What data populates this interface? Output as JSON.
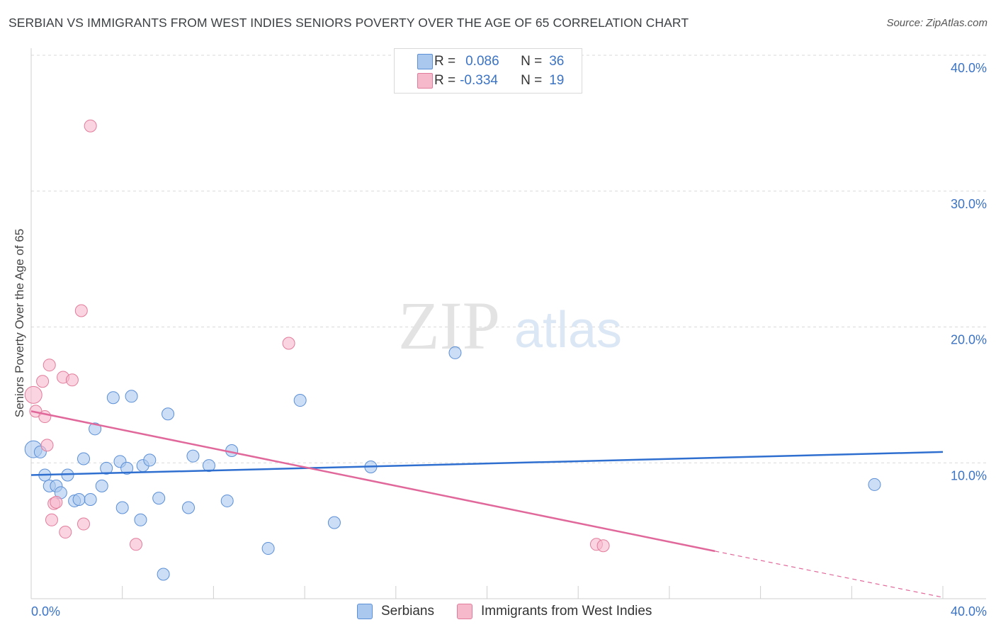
{
  "header": {
    "title": "SERBIAN VS IMMIGRANTS FROM WEST INDIES SENIORS POVERTY OVER THE AGE OF 65 CORRELATION CHART",
    "source": "Source: ZipAtlas.com"
  },
  "legend": {
    "r_label": "R =",
    "n_label": "N =",
    "rows": [
      {
        "r_value": "0.086",
        "n_value": "36",
        "color": "#aac8ee"
      },
      {
        "r_value": "-0.334",
        "n_value": "19",
        "color": "#f6b8cb"
      }
    ]
  },
  "watermark": {
    "zip": "ZIP",
    "atlas": "atlas"
  },
  "colors": {
    "serbians_fill": "#aac8ee",
    "serbians_stroke": "#5b8fd6",
    "serbians_line": "#2f6fcf",
    "westindies_fill": "#f6b8cb",
    "westindies_stroke": "#e27c9c",
    "westindies_line": "#e0689a",
    "tick_label": "#3b73c5",
    "grid": "#d9d9d9"
  },
  "chart_data": {
    "type": "scatter",
    "title": "SERBIAN VS IMMIGRANTS FROM WEST INDIES SENIORS POVERTY OVER THE AGE OF 65 CORRELATION CHART",
    "xlabel": "",
    "ylabel": "Seniors Poverty Over the Age of 65",
    "xlim": [
      0,
      40
    ],
    "ylim": [
      0,
      40
    ],
    "x_tick_labels": [
      "0.0%",
      "40.0%"
    ],
    "y_ticks": [
      10,
      20,
      30,
      40
    ],
    "y_tick_labels": [
      "10.0%",
      "20.0%",
      "30.0%",
      "40.0%"
    ],
    "grid": true,
    "legend_position": "top-center",
    "series": [
      {
        "name": "Serbians",
        "r": 0.086,
        "n": 36,
        "trend": {
          "x0": 0,
          "y0": 9.1,
          "x1": 40,
          "y1": 10.8
        },
        "points": [
          [
            0.1,
            11.0
          ],
          [
            0.4,
            10.8
          ],
          [
            0.6,
            9.1
          ],
          [
            0.8,
            8.3
          ],
          [
            1.1,
            8.3
          ],
          [
            1.3,
            7.8
          ],
          [
            1.6,
            9.1
          ],
          [
            1.9,
            7.2
          ],
          [
            2.1,
            7.3
          ],
          [
            2.3,
            10.3
          ],
          [
            2.6,
            7.3
          ],
          [
            2.8,
            12.5
          ],
          [
            3.1,
            8.3
          ],
          [
            3.3,
            9.6
          ],
          [
            3.6,
            14.8
          ],
          [
            3.9,
            10.1
          ],
          [
            4.0,
            6.7
          ],
          [
            4.2,
            9.6
          ],
          [
            4.4,
            14.9
          ],
          [
            4.8,
            5.8
          ],
          [
            4.9,
            9.8
          ],
          [
            5.2,
            10.2
          ],
          [
            5.6,
            7.4
          ],
          [
            5.8,
            1.8
          ],
          [
            6.0,
            13.6
          ],
          [
            6.9,
            6.7
          ],
          [
            7.1,
            10.5
          ],
          [
            7.8,
            9.8
          ],
          [
            8.6,
            7.2
          ],
          [
            8.8,
            10.9
          ],
          [
            10.4,
            3.7
          ],
          [
            11.8,
            14.6
          ],
          [
            13.3,
            5.6
          ],
          [
            14.9,
            9.7
          ],
          [
            18.6,
            18.1
          ],
          [
            37.0,
            8.4
          ]
        ]
      },
      {
        "name": "Immigrants from West Indies",
        "r": -0.334,
        "n": 19,
        "trend": {
          "x0": 0,
          "y0": 13.8,
          "x1": 30,
          "y1": 3.5
        },
        "trend_dashed": {
          "x0": 30,
          "y0": 3.5,
          "x1": 40,
          "y1": 0.1
        },
        "points": [
          [
            0.1,
            15.0
          ],
          [
            0.2,
            13.8
          ],
          [
            0.5,
            16.0
          ],
          [
            0.6,
            13.4
          ],
          [
            0.7,
            11.3
          ],
          [
            0.8,
            17.2
          ],
          [
            0.9,
            5.8
          ],
          [
            1.0,
            7.0
          ],
          [
            1.1,
            7.1
          ],
          [
            1.4,
            16.3
          ],
          [
            1.5,
            4.9
          ],
          [
            1.8,
            16.1
          ],
          [
            2.2,
            21.2
          ],
          [
            2.3,
            5.5
          ],
          [
            2.6,
            34.8
          ],
          [
            4.6,
            4.0
          ],
          [
            11.3,
            18.8
          ],
          [
            24.8,
            4.0
          ],
          [
            25.1,
            3.9
          ]
        ]
      }
    ]
  }
}
